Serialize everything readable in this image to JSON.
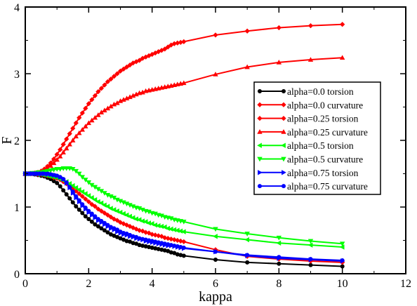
{
  "chart_data": {
    "type": "line",
    "title": "",
    "xlabel": "kappa",
    "ylabel": "F",
    "xlim": [
      0,
      12
    ],
    "ylim": [
      0,
      4
    ],
    "xticks": [
      0,
      2,
      4,
      6,
      8,
      10,
      12
    ],
    "yticks": [
      0,
      1,
      2,
      3,
      4
    ],
    "grid": false,
    "legend_position": "center-right",
    "series": [
      {
        "name": "alpha=0.0 torsion",
        "color": "#000000",
        "marker": "circle",
        "x": [
          0,
          0.1,
          0.2,
          0.3,
          0.4,
          0.5,
          0.6,
          0.7,
          0.8,
          0.9,
          1.0,
          1.1,
          1.2,
          1.3,
          1.4,
          1.5,
          1.6,
          1.7,
          1.8,
          1.9,
          2.0,
          2.1,
          2.2,
          2.3,
          2.4,
          2.5,
          2.6,
          2.7,
          2.8,
          2.9,
          3.0,
          3.1,
          3.2,
          3.3,
          3.4,
          3.5,
          3.6,
          3.7,
          3.8,
          3.9,
          4.0,
          4.1,
          4.2,
          4.3,
          4.4,
          4.5,
          4.6,
          4.7,
          4.8,
          4.9,
          5.0,
          6,
          7,
          8,
          9,
          10
        ],
        "y": [
          1.5,
          1.5,
          1.5,
          1.49,
          1.48,
          1.47,
          1.46,
          1.44,
          1.42,
          1.39,
          1.36,
          1.31,
          1.25,
          1.19,
          1.13,
          1.07,
          1.01,
          0.96,
          0.91,
          0.86,
          0.82,
          0.78,
          0.74,
          0.71,
          0.68,
          0.65,
          0.62,
          0.59,
          0.57,
          0.55,
          0.53,
          0.51,
          0.49,
          0.48,
          0.46,
          0.45,
          0.43,
          0.42,
          0.41,
          0.4,
          0.39,
          0.38,
          0.37,
          0.36,
          0.35,
          0.34,
          0.32,
          0.31,
          0.29,
          0.28,
          0.27,
          0.21,
          0.17,
          0.15,
          0.13,
          0.11
        ]
      },
      {
        "name": "alpha=0.0 curvature",
        "color": "#ff0000",
        "marker": "diamond",
        "x": [
          0,
          0.1,
          0.2,
          0.3,
          0.4,
          0.5,
          0.6,
          0.7,
          0.8,
          0.9,
          1.0,
          1.1,
          1.2,
          1.3,
          1.4,
          1.5,
          1.6,
          1.7,
          1.8,
          1.9,
          2.0,
          2.1,
          2.2,
          2.3,
          2.4,
          2.5,
          2.6,
          2.7,
          2.8,
          2.9,
          3.0,
          3.1,
          3.2,
          3.3,
          3.4,
          3.5,
          3.6,
          3.7,
          3.8,
          3.9,
          4.0,
          4.1,
          4.2,
          4.3,
          4.4,
          4.5,
          4.6,
          4.7,
          4.8,
          4.9,
          5.0,
          6,
          7,
          8,
          9,
          10
        ],
        "y": [
          1.5,
          1.5,
          1.5,
          1.51,
          1.52,
          1.54,
          1.57,
          1.61,
          1.66,
          1.72,
          1.79,
          1.86,
          1.94,
          2.02,
          2.1,
          2.18,
          2.26,
          2.34,
          2.41,
          2.48,
          2.55,
          2.61,
          2.67,
          2.73,
          2.78,
          2.83,
          2.88,
          2.92,
          2.96,
          3.0,
          3.04,
          3.07,
          3.1,
          3.13,
          3.16,
          3.18,
          3.2,
          3.23,
          3.25,
          3.27,
          3.29,
          3.31,
          3.33,
          3.35,
          3.37,
          3.4,
          3.43,
          3.45,
          3.46,
          3.47,
          3.48,
          3.58,
          3.64,
          3.69,
          3.72,
          3.74
        ]
      },
      {
        "name": "alpha=0.25 torsion",
        "color": "#ff0000",
        "marker": "diamond",
        "x": [
          0,
          0.1,
          0.2,
          0.3,
          0.4,
          0.5,
          0.6,
          0.7,
          0.8,
          0.9,
          1.0,
          1.1,
          1.2,
          1.3,
          1.4,
          1.5,
          1.6,
          1.7,
          1.8,
          1.9,
          2.0,
          2.1,
          2.2,
          2.3,
          2.4,
          2.5,
          2.6,
          2.7,
          2.8,
          2.9,
          3.0,
          3.1,
          3.2,
          3.3,
          3.4,
          3.5,
          3.6,
          3.7,
          3.8,
          3.9,
          4.0,
          4.1,
          4.2,
          4.3,
          4.4,
          4.5,
          4.6,
          4.7,
          4.8,
          4.9,
          5.0,
          6,
          7,
          8,
          9,
          10
        ],
        "y": [
          1.5,
          1.5,
          1.5,
          1.5,
          1.49,
          1.49,
          1.48,
          1.47,
          1.46,
          1.44,
          1.43,
          1.41,
          1.38,
          1.35,
          1.31,
          1.28,
          1.24,
          1.2,
          1.16,
          1.12,
          1.08,
          1.04,
          1.01,
          0.97,
          0.94,
          0.91,
          0.88,
          0.85,
          0.82,
          0.8,
          0.77,
          0.75,
          0.73,
          0.71,
          0.69,
          0.67,
          0.65,
          0.64,
          0.62,
          0.61,
          0.59,
          0.58,
          0.57,
          0.56,
          0.54,
          0.53,
          0.52,
          0.51,
          0.5,
          0.49,
          0.48,
          0.36,
          0.26,
          0.22,
          0.19,
          0.17
        ]
      },
      {
        "name": "alpha=0.25 curvature",
        "color": "#ff0000",
        "marker": "triangle-up",
        "x": [
          0,
          0.1,
          0.2,
          0.3,
          0.4,
          0.5,
          0.6,
          0.7,
          0.8,
          0.9,
          1.0,
          1.1,
          1.2,
          1.3,
          1.4,
          1.5,
          1.6,
          1.7,
          1.8,
          1.9,
          2.0,
          2.1,
          2.2,
          2.3,
          2.4,
          2.5,
          2.6,
          2.7,
          2.8,
          2.9,
          3.0,
          3.1,
          3.2,
          3.3,
          3.4,
          3.5,
          3.6,
          3.7,
          3.8,
          3.9,
          4.0,
          4.1,
          4.2,
          4.3,
          4.4,
          4.5,
          4.6,
          4.7,
          4.8,
          4.9,
          5.0,
          6,
          7,
          8,
          9,
          10
        ],
        "y": [
          1.5,
          1.5,
          1.5,
          1.51,
          1.52,
          1.53,
          1.55,
          1.58,
          1.62,
          1.66,
          1.71,
          1.76,
          1.82,
          1.88,
          1.94,
          2.0,
          2.06,
          2.11,
          2.16,
          2.21,
          2.26,
          2.3,
          2.34,
          2.38,
          2.42,
          2.45,
          2.48,
          2.51,
          2.54,
          2.56,
          2.59,
          2.61,
          2.63,
          2.65,
          2.67,
          2.69,
          2.71,
          2.72,
          2.74,
          2.75,
          2.76,
          2.77,
          2.78,
          2.79,
          2.8,
          2.81,
          2.82,
          2.83,
          2.84,
          2.85,
          2.86,
          2.99,
          3.1,
          3.17,
          3.21,
          3.24
        ]
      },
      {
        "name": "alpha=0.5 torsion",
        "color": "#00ff00",
        "marker": "triangle-left",
        "x": [
          0,
          0.1,
          0.2,
          0.3,
          0.4,
          0.5,
          0.6,
          0.7,
          0.8,
          0.9,
          1.0,
          1.1,
          1.2,
          1.3,
          1.4,
          1.5,
          1.6,
          1.7,
          1.8,
          1.9,
          2.0,
          2.1,
          2.2,
          2.3,
          2.4,
          2.5,
          2.6,
          2.7,
          2.8,
          2.9,
          3.0,
          3.1,
          3.2,
          3.3,
          3.4,
          3.5,
          3.6,
          3.7,
          3.8,
          3.9,
          4.0,
          4.1,
          4.2,
          4.3,
          4.4,
          4.5,
          4.6,
          4.7,
          4.8,
          4.9,
          5.0,
          6,
          7,
          8,
          9,
          10
        ],
        "y": [
          1.5,
          1.5,
          1.5,
          1.5,
          1.49,
          1.49,
          1.48,
          1.47,
          1.46,
          1.45,
          1.44,
          1.42,
          1.4,
          1.38,
          1.35,
          1.32,
          1.29,
          1.26,
          1.23,
          1.2,
          1.17,
          1.14,
          1.11,
          1.08,
          1.06,
          1.03,
          1.01,
          0.98,
          0.96,
          0.94,
          0.92,
          0.9,
          0.88,
          0.86,
          0.84,
          0.82,
          0.81,
          0.79,
          0.78,
          0.76,
          0.75,
          0.73,
          0.72,
          0.71,
          0.7,
          0.68,
          0.67,
          0.66,
          0.65,
          0.64,
          0.63,
          0.56,
          0.51,
          0.46,
          0.43,
          0.4
        ]
      },
      {
        "name": "alpha=0.5 curvature",
        "color": "#00ff00",
        "marker": "triangle-down",
        "x": [
          0,
          0.1,
          0.2,
          0.3,
          0.4,
          0.5,
          0.6,
          0.7,
          0.8,
          0.9,
          1.0,
          1.1,
          1.2,
          1.3,
          1.4,
          1.5,
          1.6,
          1.7,
          1.8,
          1.9,
          2.0,
          2.1,
          2.2,
          2.3,
          2.4,
          2.5,
          2.6,
          2.7,
          2.8,
          2.9,
          3.0,
          3.1,
          3.2,
          3.3,
          3.4,
          3.5,
          3.6,
          3.7,
          3.8,
          3.9,
          4.0,
          4.1,
          4.2,
          4.3,
          4.4,
          4.5,
          4.6,
          4.7,
          4.8,
          4.9,
          5.0,
          6,
          7,
          8,
          9,
          10
        ],
        "y": [
          1.5,
          1.5,
          1.51,
          1.51,
          1.52,
          1.52,
          1.53,
          1.54,
          1.55,
          1.56,
          1.57,
          1.57,
          1.58,
          1.58,
          1.58,
          1.57,
          1.54,
          1.5,
          1.45,
          1.41,
          1.37,
          1.33,
          1.3,
          1.27,
          1.24,
          1.21,
          1.18,
          1.16,
          1.14,
          1.11,
          1.09,
          1.07,
          1.05,
          1.03,
          1.01,
          0.99,
          0.98,
          0.96,
          0.94,
          0.93,
          0.91,
          0.9,
          0.88,
          0.87,
          0.85,
          0.84,
          0.83,
          0.81,
          0.8,
          0.79,
          0.78,
          0.67,
          0.6,
          0.54,
          0.49,
          0.45
        ]
      },
      {
        "name": "alpha=0.75 torsion",
        "color": "#0000ff",
        "marker": "triangle-right",
        "x": [
          0,
          0.1,
          0.2,
          0.3,
          0.4,
          0.5,
          0.6,
          0.7,
          0.8,
          0.9,
          1.0,
          1.1,
          1.2,
          1.3,
          1.4,
          1.5,
          1.6,
          1.7,
          1.8,
          1.9,
          2.0,
          2.1,
          2.2,
          2.3,
          2.4,
          2.5,
          2.6,
          2.7,
          2.8,
          2.9,
          3.0,
          3.1,
          3.2,
          3.3,
          3.4,
          3.5,
          3.6,
          3.7,
          3.8,
          3.9,
          4.0,
          4.1,
          4.2,
          4.3,
          4.4,
          4.5,
          4.6,
          4.7,
          4.8,
          4.9,
          5.0,
          6,
          7,
          8,
          9,
          10
        ],
        "y": [
          1.5,
          1.5,
          1.5,
          1.5,
          1.5,
          1.5,
          1.5,
          1.49,
          1.49,
          1.48,
          1.47,
          1.45,
          1.42,
          1.36,
          1.29,
          1.21,
          1.14,
          1.08,
          1.02,
          0.97,
          0.92,
          0.88,
          0.84,
          0.8,
          0.77,
          0.74,
          0.71,
          0.68,
          0.66,
          0.63,
          0.61,
          0.59,
          0.58,
          0.56,
          0.55,
          0.53,
          0.52,
          0.51,
          0.49,
          0.48,
          0.47,
          0.46,
          0.45,
          0.44,
          0.43,
          0.42,
          0.42,
          0.41,
          0.4,
          0.39,
          0.38,
          0.33,
          0.27,
          0.23,
          0.21,
          0.19
        ]
      },
      {
        "name": "alpha=0.75 curvature",
        "color": "#0000ff",
        "marker": "circle",
        "x": [
          0,
          0.1,
          0.2,
          0.3,
          0.4,
          0.5,
          0.6,
          0.7,
          0.8,
          0.9,
          1.0,
          1.1,
          1.2,
          1.3,
          1.4,
          1.5,
          1.6,
          1.7,
          1.8,
          1.9,
          2.0,
          2.1,
          2.2,
          2.3,
          2.4,
          2.5,
          2.6,
          2.7,
          2.8,
          2.9,
          3.0,
          3.1,
          3.2,
          3.3,
          3.4,
          3.5,
          3.6,
          3.7,
          3.8,
          3.9,
          4.0,
          4.1,
          4.2,
          4.3,
          4.4,
          4.5,
          4.6,
          4.7,
          4.8,
          4.9,
          5.0,
          6,
          7,
          8,
          9,
          10
        ],
        "y": [
          1.5,
          1.5,
          1.5,
          1.5,
          1.5,
          1.5,
          1.5,
          1.5,
          1.49,
          1.48,
          1.47,
          1.45,
          1.42,
          1.37,
          1.3,
          1.23,
          1.16,
          1.1,
          1.04,
          0.99,
          0.94,
          0.9,
          0.86,
          0.82,
          0.79,
          0.76,
          0.73,
          0.7,
          0.68,
          0.66,
          0.63,
          0.61,
          0.6,
          0.58,
          0.56,
          0.55,
          0.53,
          0.52,
          0.51,
          0.5,
          0.49,
          0.48,
          0.47,
          0.46,
          0.45,
          0.44,
          0.43,
          0.42,
          0.41,
          0.4,
          0.39,
          0.33,
          0.28,
          0.25,
          0.22,
          0.2
        ]
      }
    ]
  }
}
